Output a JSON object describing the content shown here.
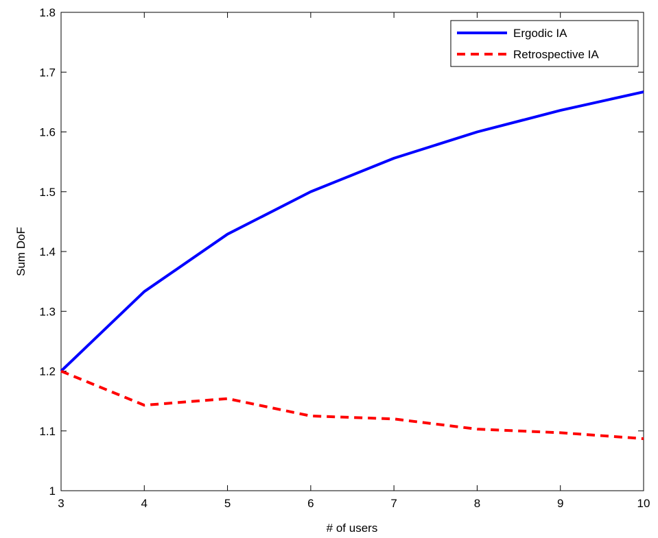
{
  "chart_data": {
    "type": "line",
    "title": "",
    "xlabel": "# of users",
    "ylabel": "Sum DoF",
    "xlim": [
      3,
      10
    ],
    "ylim": [
      1,
      1.8
    ],
    "x_ticks": [
      "3",
      "4",
      "5",
      "6",
      "7",
      "8",
      "9",
      "10"
    ],
    "y_ticks": [
      "1",
      "1.1",
      "1.2",
      "1.3",
      "1.4",
      "1.5",
      "1.6",
      "1.7",
      "1.8"
    ],
    "grid": false,
    "legend_position": "top-right",
    "x": [
      3,
      4,
      5,
      6,
      7,
      8,
      9,
      10
    ],
    "series": [
      {
        "name": "Ergodic IA",
        "color": "#0000ff",
        "style": "solid",
        "values": [
          1.2,
          1.333,
          1.429,
          1.5,
          1.556,
          1.6,
          1.636,
          1.667
        ]
      },
      {
        "name": "Retrospective IA",
        "color": "#ff0000",
        "style": "dashed",
        "values": [
          1.2,
          1.143,
          1.154,
          1.125,
          1.12,
          1.103,
          1.097,
          1.087
        ]
      }
    ]
  }
}
